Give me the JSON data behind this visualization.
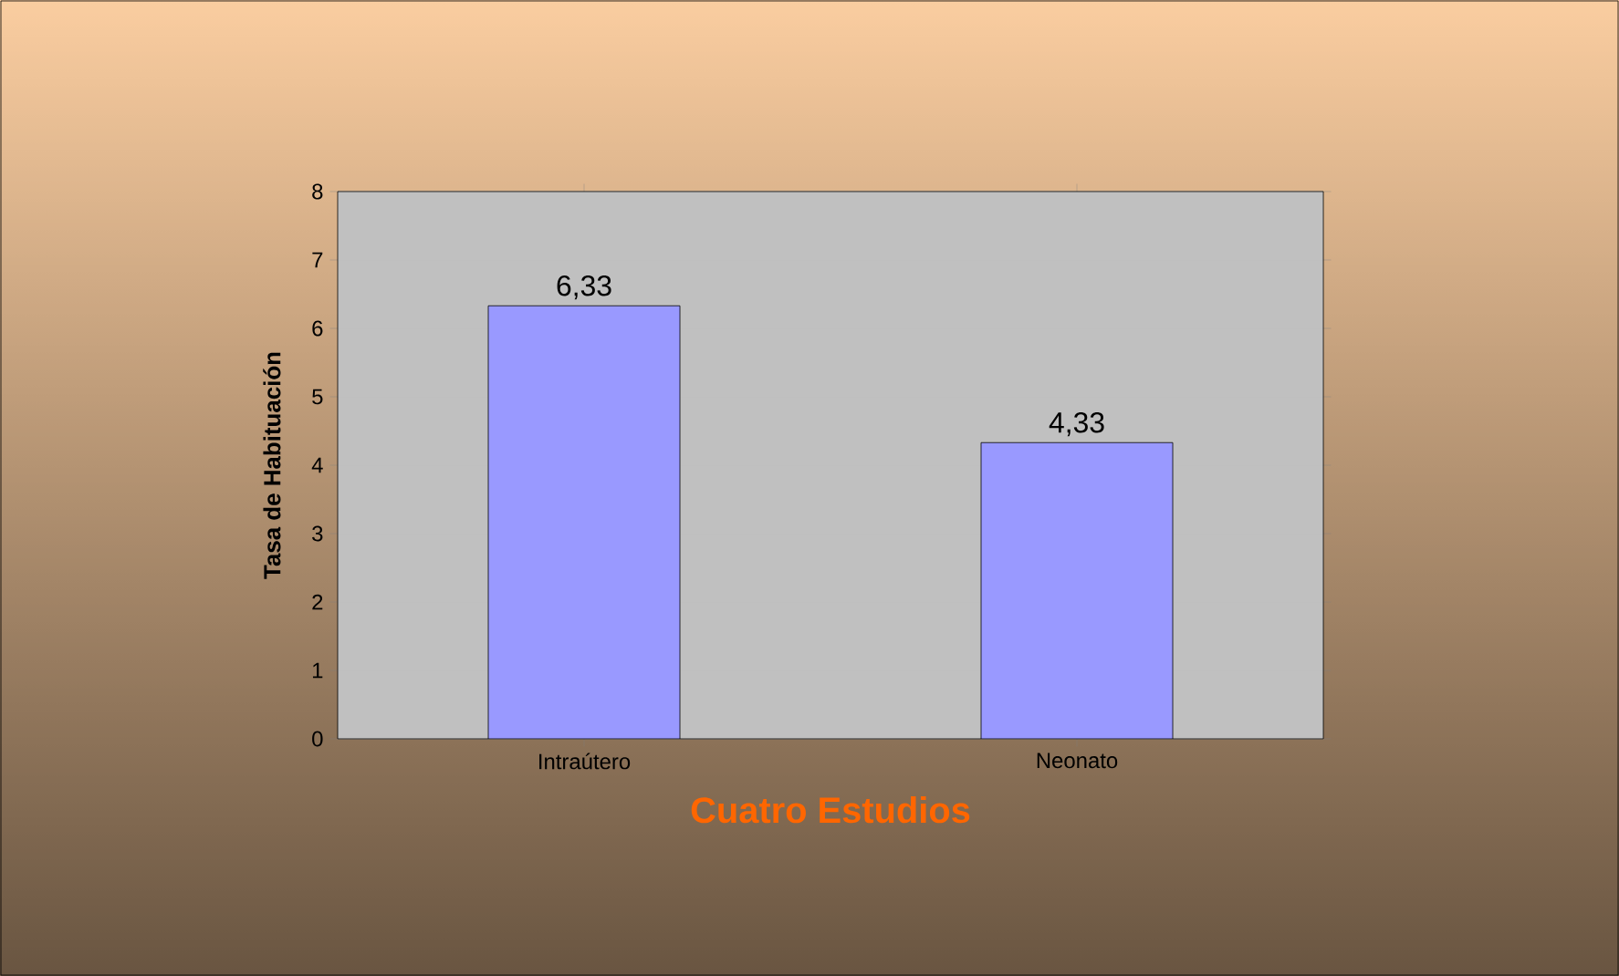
{
  "chart_data": {
    "type": "bar",
    "xlabel": "Cuatro Estudios",
    "ylabel": "Tasa de Habituación",
    "categories": [
      "Intraútero",
      "Neonato"
    ],
    "values": [
      6.33,
      4.33
    ],
    "value_labels": [
      "6,33",
      "4,33"
    ],
    "color": "#9999ff",
    "ylim": [
      0,
      8
    ],
    "yticks": [
      0,
      1,
      2,
      3,
      4,
      5,
      6,
      7,
      8
    ],
    "grid": "y"
  }
}
